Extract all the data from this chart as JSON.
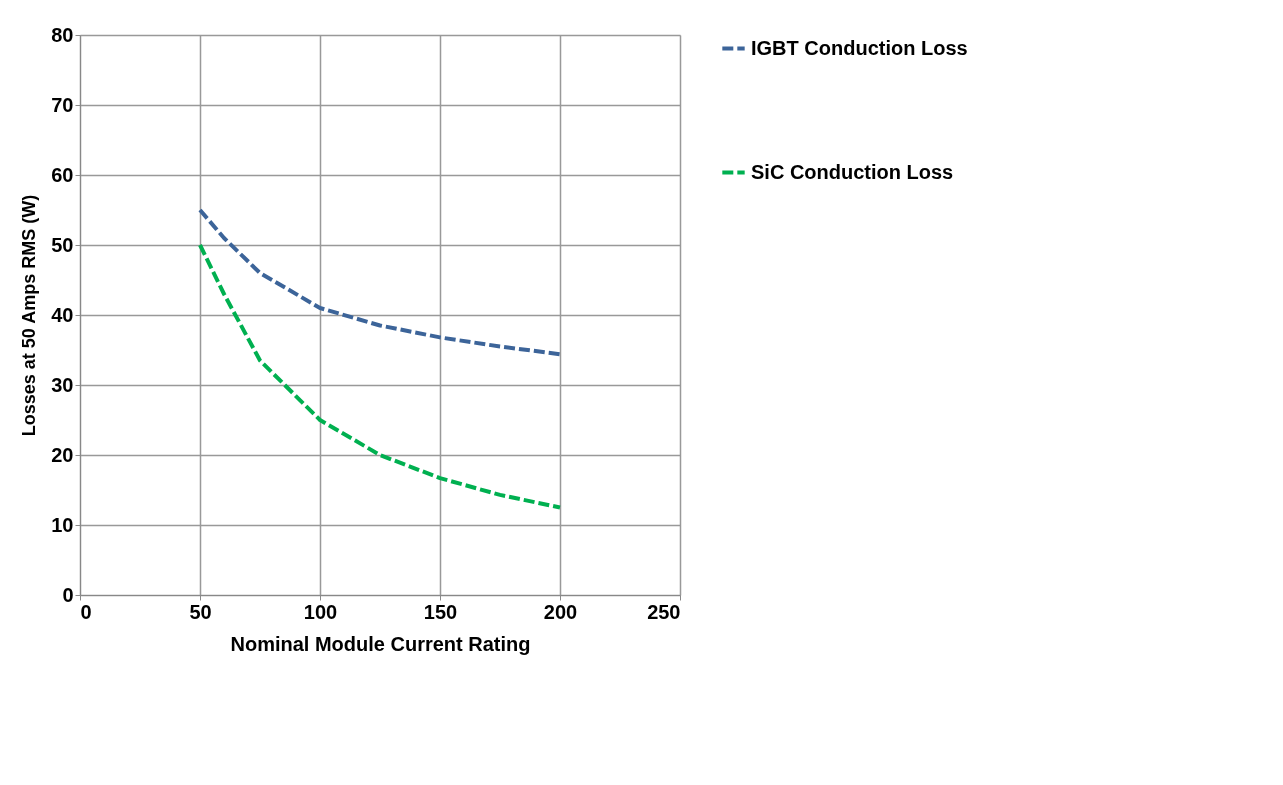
{
  "chart_data": {
    "type": "line",
    "xlabel": "Nominal Module Current Rating",
    "ylabel": "Losses at 50 Amps RMS (W)",
    "x": [
      50,
      60,
      75,
      100,
      125,
      150,
      175,
      200
    ],
    "series": [
      {
        "name": "IGBT Conduction Loss",
        "color": "#3c6499",
        "values": [
          55,
          51,
          46,
          41,
          38.5,
          36.8,
          35.5,
          34.4
        ]
      },
      {
        "name": "SiC Conduction Loss",
        "color": "#00b050",
        "values": [
          50,
          43,
          33.5,
          25,
          20,
          16.7,
          14.3,
          12.5
        ]
      }
    ],
    "xlim": [
      0,
      250
    ],
    "xticks": [
      0,
      50,
      100,
      150,
      200,
      250
    ],
    "ylim": [
      0,
      80
    ],
    "yticks": [
      0,
      10,
      20,
      30,
      40,
      50,
      60,
      70,
      80
    ],
    "grid": true,
    "legend": "right",
    "line_style": "dashed",
    "marker": "none"
  }
}
